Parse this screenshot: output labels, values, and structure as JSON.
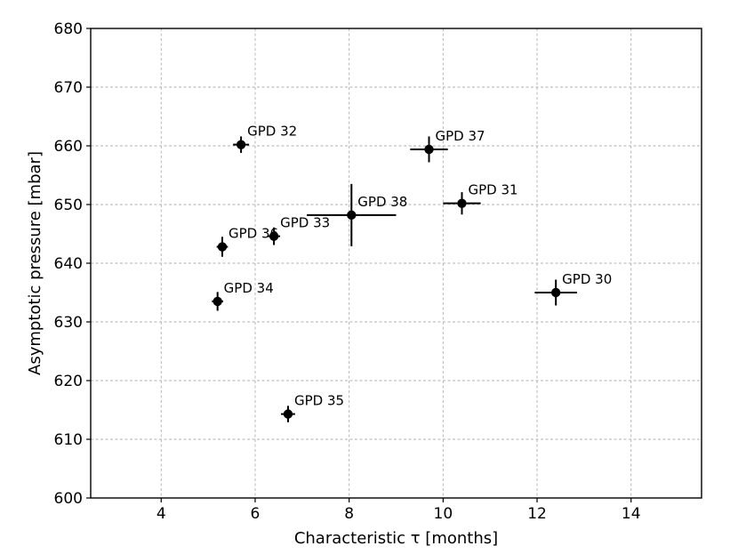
{
  "chart_data": {
    "type": "scatter",
    "title": "",
    "xlabel": "Characteristic τ [months]",
    "ylabel": "Asymptotic pressure [mbar]",
    "xlim": [
      2.5,
      15.5
    ],
    "ylim": [
      600,
      680
    ],
    "xticks": [
      4,
      6,
      8,
      10,
      12,
      14
    ],
    "yticks": [
      600,
      610,
      620,
      630,
      640,
      650,
      660,
      670,
      680
    ],
    "grid": true,
    "points": [
      {
        "label": "GPD 32",
        "x": 5.7,
        "y": 660.2,
        "xerr": 0.17,
        "yerr": 1.4
      },
      {
        "label": "GPD 37",
        "x": 9.7,
        "y": 659.4,
        "xerr": 0.4,
        "yerr": 2.2
      },
      {
        "label": "GPD 38",
        "x": 8.05,
        "y": 648.2,
        "xerr": 0.95,
        "yerr": 5.3
      },
      {
        "label": "GPD 31",
        "x": 10.4,
        "y": 650.2,
        "xerr": 0.4,
        "yerr": 1.9
      },
      {
        "label": "GPD 36",
        "x": 5.3,
        "y": 642.8,
        "xerr": 0.12,
        "yerr": 1.7
      },
      {
        "label": "GPD 33",
        "x": 6.4,
        "y": 644.6,
        "xerr": 0.13,
        "yerr": 1.5
      },
      {
        "label": "GPD 30",
        "x": 12.4,
        "y": 635.0,
        "xerr": 0.45,
        "yerr": 2.2
      },
      {
        "label": "GPD 34",
        "x": 5.2,
        "y": 633.5,
        "xerr": 0.12,
        "yerr": 1.6
      },
      {
        "label": "GPD 35",
        "x": 6.7,
        "y": 614.3,
        "xerr": 0.15,
        "yerr": 1.4
      }
    ]
  }
}
